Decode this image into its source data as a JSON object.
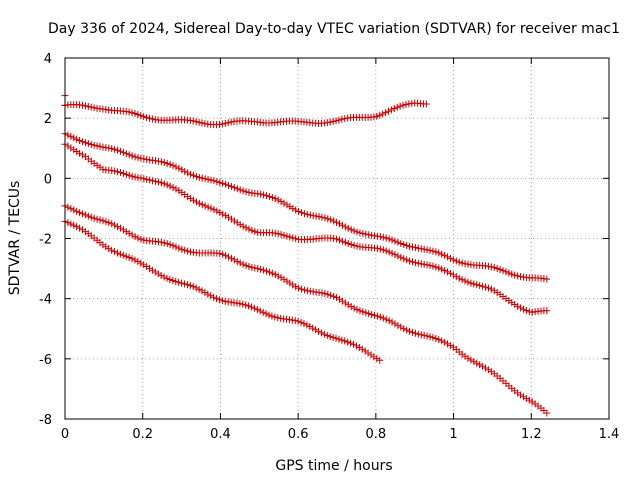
{
  "chart_data": {
    "type": "scatter",
    "title": "Day 336 of 2024, Sidereal Day-to-day VTEC variation (SDTVAR) for receiver mac1",
    "xlabel": "GPS time / hours",
    "ylabel": "SDTVAR / TECUs",
    "xlim": [
      0,
      1.4
    ],
    "ylim": [
      -8,
      4
    ],
    "x_ticks": [
      0,
      0.2,
      0.4,
      0.6,
      0.8,
      1,
      1.2,
      1.4
    ],
    "x_tick_labels": [
      "0",
      "0.2",
      "0.4",
      "0.6",
      "0.8",
      "1",
      "1.2",
      "1.4"
    ],
    "y_ticks": [
      -8,
      -6,
      -4,
      -2,
      0,
      2,
      4
    ],
    "y_tick_labels": [
      "-8",
      "-6",
      "-4",
      "-2",
      "0",
      "2",
      "4"
    ],
    "grid": true,
    "marker": "+",
    "color": "#cc0000",
    "series": [
      {
        "name": "series-1",
        "x_start": 0.0,
        "x_end": 0.93,
        "points": [
          [
            0.0,
            2.75
          ],
          [
            0.0,
            2.42
          ],
          [
            0.1,
            2.35
          ],
          [
            0.2,
            2.05
          ],
          [
            0.3,
            1.9
          ],
          [
            0.4,
            1.82
          ],
          [
            0.5,
            1.9
          ],
          [
            0.6,
            1.85
          ],
          [
            0.7,
            1.9
          ],
          [
            0.8,
            2.1
          ],
          [
            0.9,
            2.5
          ],
          [
            0.93,
            2.52
          ]
        ]
      },
      {
        "name": "series-2",
        "x_start": 0.0,
        "x_end": 1.24,
        "points": [
          [
            0.0,
            1.45
          ],
          [
            0.05,
            1.25
          ],
          [
            0.1,
            1.0
          ],
          [
            0.2,
            0.7
          ],
          [
            0.3,
            0.3
          ],
          [
            0.4,
            -0.2
          ],
          [
            0.5,
            -0.5
          ],
          [
            0.6,
            -1.05
          ],
          [
            0.7,
            -1.5
          ],
          [
            0.8,
            -1.95
          ],
          [
            0.9,
            -2.25
          ],
          [
            1.0,
            -2.7
          ],
          [
            1.1,
            -3.0
          ],
          [
            1.2,
            -3.3
          ],
          [
            1.24,
            -3.4
          ]
        ]
      },
      {
        "name": "series-3",
        "x_start": 0.0,
        "x_end": 1.24,
        "points": [
          [
            0.0,
            1.1
          ],
          [
            0.05,
            0.8
          ],
          [
            0.1,
            0.25
          ],
          [
            0.2,
            0.05
          ],
          [
            0.3,
            -0.45
          ],
          [
            0.4,
            -1.2
          ],
          [
            0.5,
            -1.8
          ],
          [
            0.6,
            -1.98
          ],
          [
            0.7,
            -2.05
          ],
          [
            0.8,
            -2.35
          ],
          [
            0.9,
            -2.75
          ],
          [
            1.0,
            -3.2
          ],
          [
            1.1,
            -3.75
          ],
          [
            1.2,
            -4.45
          ],
          [
            1.24,
            -4.45
          ]
        ]
      },
      {
        "name": "series-4",
        "x_start": 0.0,
        "x_end": 1.24,
        "points": [
          [
            0.0,
            -0.95
          ],
          [
            0.05,
            -1.15
          ],
          [
            0.1,
            -1.45
          ],
          [
            0.2,
            -2.0
          ],
          [
            0.3,
            -2.35
          ],
          [
            0.4,
            -2.55
          ],
          [
            0.5,
            -3.0
          ],
          [
            0.6,
            -3.6
          ],
          [
            0.7,
            -4.0
          ],
          [
            0.8,
            -4.6
          ],
          [
            0.9,
            -5.1
          ],
          [
            1.0,
            -5.6
          ],
          [
            1.1,
            -6.5
          ],
          [
            1.2,
            -7.4
          ],
          [
            1.24,
            -7.85
          ]
        ]
      },
      {
        "name": "series-5",
        "x_start": 0.0,
        "x_end": 0.81,
        "points": [
          [
            0.0,
            -1.4
          ],
          [
            0.1,
            -2.2
          ],
          [
            0.2,
            -2.9
          ],
          [
            0.3,
            -3.5
          ],
          [
            0.4,
            -4.0
          ],
          [
            0.5,
            -4.4
          ],
          [
            0.6,
            -4.8
          ],
          [
            0.7,
            -5.3
          ],
          [
            0.81,
            -6.0
          ]
        ]
      }
    ]
  }
}
